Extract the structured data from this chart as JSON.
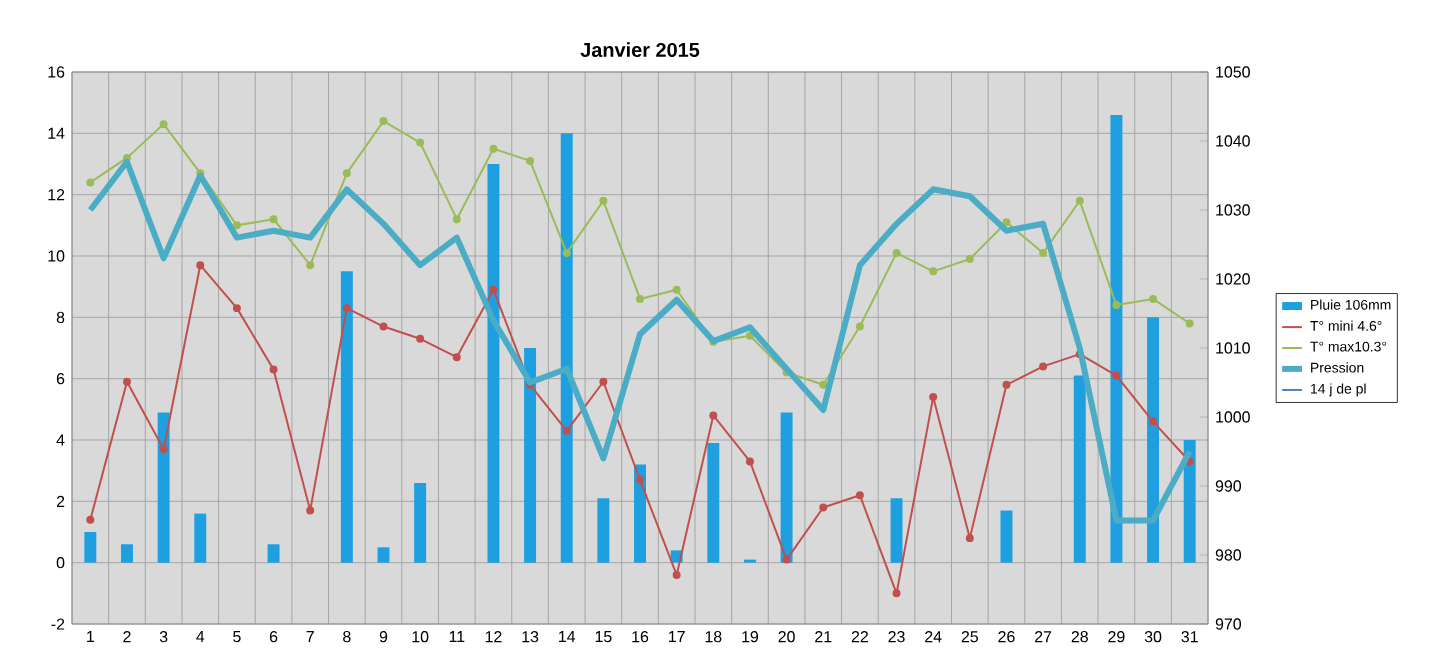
{
  "chart_data": {
    "type": "bar",
    "title": "Janvier 2015",
    "categories": [
      "1",
      "2",
      "3",
      "4",
      "5",
      "6",
      "7",
      "8",
      "9",
      "10",
      "11",
      "12",
      "13",
      "14",
      "15",
      "16",
      "17",
      "18",
      "19",
      "20",
      "21",
      "22",
      "23",
      "24",
      "25",
      "26",
      "27",
      "28",
      "29",
      "30",
      "31"
    ],
    "series": [
      {
        "name": "Pluie 106mm",
        "color": "#1ea0e0",
        "values": [
          1.0,
          0.6,
          4.9,
          1.6,
          0,
          0.6,
          0,
          9.5,
          0.5,
          2.6,
          0,
          13.0,
          7.0,
          14.0,
          2.1,
          3.2,
          0.4,
          3.9,
          0.1,
          4.9,
          0,
          0,
          2.1,
          0,
          0,
          1.7,
          0,
          6.1,
          14.6,
          8.0,
          4.0
        ]
      },
      {
        "name": "T° mini 4.6°",
        "type": "line",
        "color": "#c0504d",
        "marker": "circle",
        "values": [
          1.4,
          5.9,
          3.7,
          9.7,
          8.3,
          6.3,
          1.7,
          8.3,
          7.7,
          7.3,
          6.7,
          8.9,
          5.8,
          4.3,
          5.9,
          2.7,
          -0.4,
          4.8,
          3.3,
          0.1,
          1.8,
          2.2,
          -1.0,
          5.4,
          0.8,
          5.8,
          6.4,
          6.8,
          6.1,
          4.6,
          3.3
        ]
      },
      {
        "name": "T° max10.3°",
        "type": "line",
        "color": "#9bbb59",
        "marker": "circle",
        "values": [
          12.4,
          13.2,
          14.3,
          12.7,
          11.0,
          11.2,
          9.7,
          12.7,
          14.4,
          13.7,
          11.2,
          13.5,
          13.1,
          10.1,
          11.8,
          8.6,
          8.9,
          7.2,
          7.4,
          6.2,
          5.8,
          7.7,
          10.1,
          9.5,
          9.9,
          11.1,
          10.1,
          11.8,
          8.4,
          8.6,
          7.8
        ]
      },
      {
        "name": "Pression",
        "type": "line",
        "axis": "y2",
        "color": "#4bacc6",
        "marker": "none",
        "values": [
          1030,
          1037,
          1023,
          1035,
          1026,
          1027,
          1026,
          1033,
          1028,
          1022,
          1026,
          1014,
          1005,
          1007,
          994,
          1012,
          1017,
          1011,
          1013,
          1007,
          1001,
          1022,
          1028,
          1033,
          1032,
          1027,
          1028,
          1010,
          985,
          985,
          995
        ]
      },
      {
        "name": "14 j de pl",
        "type": "line",
        "color": "#4f81bd",
        "marker": "circle",
        "values": [
          null,
          null,
          null,
          null,
          null,
          null,
          null,
          null,
          null,
          null,
          null,
          null,
          null,
          null,
          null,
          null,
          null,
          null,
          null,
          null,
          null,
          null,
          null,
          null,
          null,
          null,
          null,
          null,
          null,
          null,
          null
        ]
      }
    ],
    "ylim": [
      -2,
      16
    ],
    "yticks": [
      -2,
      0,
      2,
      4,
      6,
      8,
      10,
      12,
      14,
      16
    ],
    "y2lim": [
      970,
      1050
    ],
    "y2ticks": [
      970,
      980,
      990,
      1000,
      1010,
      1020,
      1030,
      1040,
      1050
    ],
    "grid": true,
    "legend": "right"
  }
}
